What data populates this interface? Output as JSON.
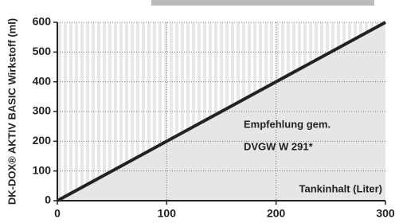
{
  "chart_data": {
    "type": "area-line",
    "y_label": "DK-DOX® AKTIV BASIC Wirkstoff (ml)",
    "x_label": "Tankinhalt (Liter)",
    "annotation": [
      "Empfehlung gem.",
      "DVGW W 291*"
    ],
    "x": [
      0,
      300
    ],
    "values": [
      0,
      600
    ],
    "color": "#222222",
    "fill": "#e6e6e6",
    "xlim": [
      0,
      300
    ],
    "xticks": [
      0,
      100,
      200,
      300
    ],
    "ylim": [
      0,
      600
    ],
    "yticks": [
      0,
      100,
      200,
      300,
      400,
      500,
      600
    ],
    "grid": true
  }
}
